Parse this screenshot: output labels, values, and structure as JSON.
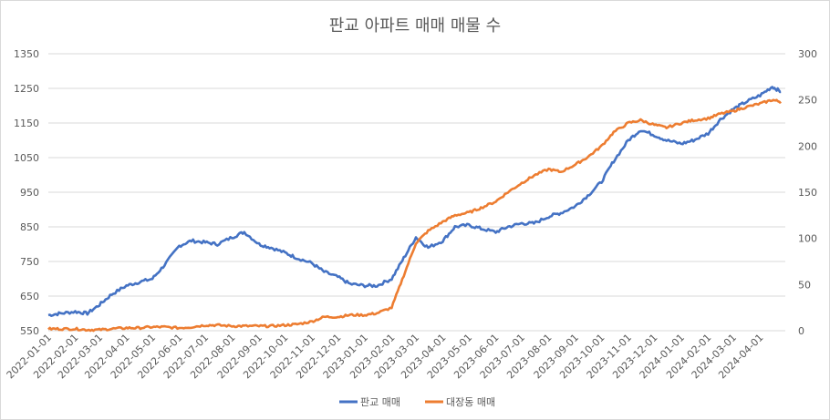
{
  "chart_data": {
    "type": "line",
    "title": "판교 아파트 매매 매물 수",
    "xlabel": "",
    "ylabel": "",
    "grid": true,
    "legend_position": "bottom",
    "x_tick_labels": [
      "2022-01-01",
      "2022-02-01",
      "2022-03-01",
      "2022-04-01",
      "2022-05-01",
      "2022-06-01",
      "2022-07-01",
      "2022-08-01",
      "2022-09-01",
      "2022-10-01",
      "2022-11-01",
      "2022-12-01",
      "2023-01-01",
      "2023-02-01",
      "2023-03-01",
      "2023-04-01",
      "2023-05-01",
      "2023-06-01",
      "2023-07-01",
      "2023-08-01",
      "2023-09-01",
      "2023-10-01",
      "2023-11-01",
      "2023-12-01",
      "2024-01-01",
      "2024-02-01",
      "2024-03-01",
      "2024-04-01"
    ],
    "y_left": {
      "min": 550,
      "max": 1350,
      "ticks": [
        550,
        650,
        750,
        850,
        950,
        1050,
        1150,
        1250,
        1350
      ]
    },
    "y_right": {
      "min": 0,
      "max": 300,
      "ticks": [
        0,
        50,
        100,
        150,
        200,
        250,
        300
      ]
    },
    "x": [
      "2022-01-01",
      "2022-01-15",
      "2022-02-01",
      "2022-02-15",
      "2022-03-01",
      "2022-03-15",
      "2022-04-01",
      "2022-04-15",
      "2022-05-01",
      "2022-05-15",
      "2022-06-01",
      "2022-06-15",
      "2022-07-01",
      "2022-07-15",
      "2022-08-01",
      "2022-08-15",
      "2022-09-01",
      "2022-09-15",
      "2022-10-01",
      "2022-10-15",
      "2022-11-01",
      "2022-11-15",
      "2022-12-01",
      "2022-12-15",
      "2023-01-01",
      "2023-01-15",
      "2023-02-01",
      "2023-02-15",
      "2023-03-01",
      "2023-03-15",
      "2023-04-01",
      "2023-04-15",
      "2023-05-01",
      "2023-05-15",
      "2023-06-01",
      "2023-06-15",
      "2023-07-01",
      "2023-07-15",
      "2023-08-01",
      "2023-08-15",
      "2023-09-01",
      "2023-09-15",
      "2023-10-01",
      "2023-10-15",
      "2023-11-01",
      "2023-11-15",
      "2023-12-01",
      "2023-12-15",
      "2024-01-01",
      "2024-01-15",
      "2024-02-01",
      "2024-02-15",
      "2024-03-01",
      "2024-03-15",
      "2024-04-01",
      "2024-04-15",
      "2024-04-25"
    ],
    "series": [
      {
        "name": "판교 매매",
        "axis": "left",
        "color": "#4472C4",
        "values": [
          595,
          600,
          605,
          600,
          625,
          655,
          680,
          690,
          700,
          740,
          795,
          810,
          805,
          800,
          820,
          835,
          800,
          790,
          775,
          760,
          745,
          720,
          705,
          685,
          680,
          680,
          700,
          760,
          820,
          790,
          810,
          850,
          855,
          845,
          835,
          850,
          860,
          860,
          880,
          890,
          910,
          940,
          980,
          1040,
          1100,
          1130,
          1115,
          1100,
          1090,
          1100,
          1120,
          1160,
          1190,
          1210,
          1230,
          1255,
          1240
        ]
      },
      {
        "name": "대장동 매매",
        "axis": "right",
        "color": "#ED7D31",
        "values": [
          2,
          2,
          2,
          1,
          1,
          2,
          3,
          3,
          4,
          4,
          3,
          4,
          6,
          6,
          5,
          5,
          5,
          5,
          6,
          7,
          10,
          15,
          15,
          17,
          17,
          19,
          25,
          60,
          95,
          108,
          118,
          125,
          128,
          133,
          140,
          150,
          160,
          168,
          175,
          172,
          180,
          188,
          200,
          215,
          225,
          228,
          223,
          220,
          225,
          228,
          230,
          235,
          238,
          242,
          246,
          250,
          248
        ]
      }
    ]
  }
}
